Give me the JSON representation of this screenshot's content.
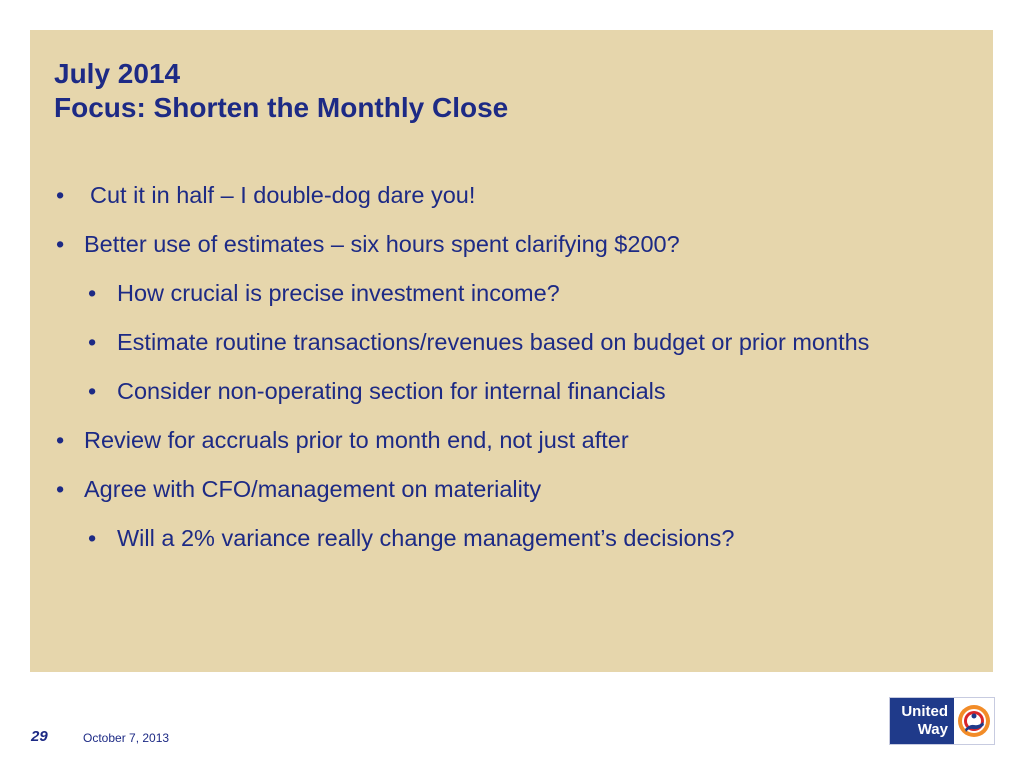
{
  "slide": {
    "title_line1": "July 2014",
    "title_line2": "Focus: Shorten the Monthly Close",
    "bullets": [
      {
        "level": 1,
        "text": "Cut it in half – I double-dog dare you!"
      },
      {
        "level": 1,
        "text": "Better use of estimates – six hours spent clarifying $200?"
      },
      {
        "level": 2,
        "text": "How crucial is precise investment income?"
      },
      {
        "level": 2,
        "text": "Estimate routine transactions/revenues based on budget or prior months"
      },
      {
        "level": 2,
        "text": "Consider non-operating section for internal financials"
      },
      {
        "level": 1,
        "text": "Review for accruals prior to month end, not just after"
      },
      {
        "level": 1,
        "text": "Agree with CFO/management on materiality"
      },
      {
        "level": 2,
        "text": "Will a 2% variance really change management’s decisions?"
      }
    ]
  },
  "footer": {
    "page_number": "29",
    "date": "October 7, 2013"
  },
  "logo": {
    "line1": "United",
    "line2": "Way"
  },
  "colors": {
    "panel_background": "#e6d6ac",
    "text": "#1d2a85",
    "logo_blue": "#1f3a8a",
    "logo_orange": "#f28c28",
    "logo_red": "#d9252a"
  }
}
